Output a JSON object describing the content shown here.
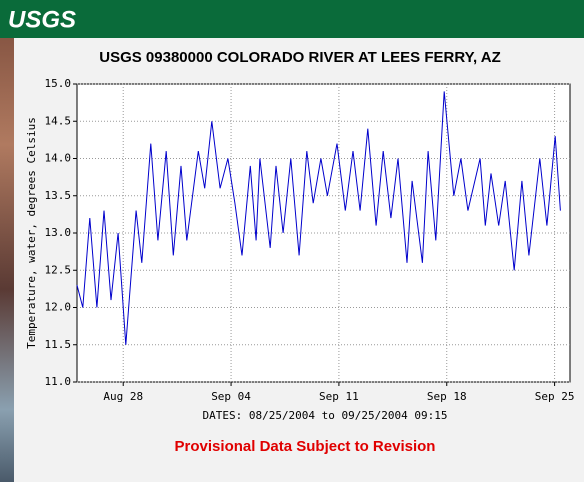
{
  "header": {
    "logo": "USGS"
  },
  "chart_data": {
    "type": "line",
    "title": "USGS 09380000 COLORADO RIVER AT LEES FERRY, AZ",
    "ylabel": "Temperature, water, degrees Celsius",
    "xlabel": "DATES: 08/25/2004 to 09/25/2004 09:15",
    "annotation": "Provisional Data Subject to Revision",
    "grid": true,
    "xlim": [
      "2004-08-25T00:00",
      "2004-09-26T00:00"
    ],
    "xticks": [
      {
        "value": "2004-08-28T00:00",
        "label": "Aug 28"
      },
      {
        "value": "2004-09-04T00:00",
        "label": "Sep 04"
      },
      {
        "value": "2004-09-11T00:00",
        "label": "Sep 11"
      },
      {
        "value": "2004-09-18T00:00",
        "label": "Sep 18"
      },
      {
        "value": "2004-09-25T00:00",
        "label": "Sep 25"
      }
    ],
    "ylim": [
      11.0,
      15.0
    ],
    "yticks": [
      {
        "value": 11,
        "label": "11.0"
      },
      11.5,
      {
        "value": 12,
        "label": "12.0"
      },
      12.5,
      {
        "value": 13,
        "label": "13.0"
      },
      13.5,
      {
        "value": 14,
        "label": "14.0"
      },
      14.5,
      {
        "value": 15,
        "label": "15.0"
      }
    ],
    "series": [
      {
        "color": "#0000cc",
        "x": [
          "2004-08-25T00:00",
          "2004-08-25T09:00",
          "2004-08-25T20:00",
          "2004-08-26T07:00",
          "2004-08-26T18:00",
          "2004-08-27T05:00",
          "2004-08-27T16:00",
          "2004-08-28T04:00",
          "2004-08-28T20:00",
          "2004-08-29T05:00",
          "2004-08-29T19:00",
          "2004-08-30T06:00",
          "2004-08-30T19:00",
          "2004-08-31T06:00",
          "2004-08-31T18:00",
          "2004-09-01T03:00",
          "2004-09-01T21:00",
          "2004-09-02T07:00",
          "2004-09-02T18:00",
          "2004-09-03T07:00",
          "2004-09-03T19:00",
          "2004-09-04T06:00",
          "2004-09-04T17:00",
          "2004-09-05T06:00",
          "2004-09-05T15:00",
          "2004-09-05T21:00",
          "2004-09-06T13:00",
          "2004-09-06T22:00",
          "2004-09-07T09:00",
          "2004-09-07T21:00",
          "2004-09-08T10:00",
          "2004-09-08T22:00",
          "2004-09-09T08:00",
          "2004-09-09T20:00",
          "2004-09-10T06:00",
          "2004-09-10T21:00",
          "2004-09-11T10:00",
          "2004-09-11T22:00",
          "2004-09-12T09:00",
          "2004-09-12T21:00",
          "2004-09-13T10:00",
          "2004-09-13T21:00",
          "2004-09-14T09:00",
          "2004-09-14T20:00",
          "2004-09-15T10:00",
          "2004-09-15T18:00",
          "2004-09-16T10:00",
          "2004-09-16T19:00",
          "2004-09-17T07:00",
          "2004-09-17T20:00",
          "2004-09-18T11:00",
          "2004-09-18T22:00",
          "2004-09-19T09:00",
          "2004-09-20T04:00",
          "2004-09-20T12:00",
          "2004-09-20T21:00",
          "2004-09-21T09:00",
          "2004-09-21T19:00",
          "2004-09-22T09:00",
          "2004-09-22T21:00",
          "2004-09-23T08:00",
          "2004-09-24T01:00",
          "2004-09-24T12:00",
          "2004-09-25T01:00",
          "2004-09-25T09:00"
        ],
        "values": [
          12.3,
          12.0,
          13.2,
          12.0,
          13.3,
          12.1,
          13.0,
          11.5,
          13.3,
          12.6,
          14.2,
          12.9,
          14.1,
          12.7,
          13.9,
          12.9,
          14.1,
          13.6,
          14.5,
          13.6,
          14.0,
          13.4,
          12.7,
          13.9,
          12.9,
          14.0,
          12.8,
          13.9,
          13.0,
          14.0,
          12.7,
          14.1,
          13.4,
          14.0,
          13.5,
          14.2,
          13.3,
          14.1,
          13.3,
          14.4,
          13.1,
          14.1,
          13.2,
          14.0,
          12.6,
          13.7,
          12.6,
          14.1,
          12.9,
          14.9,
          13.5,
          14.0,
          13.3,
          14.0,
          13.1,
          13.8,
          13.1,
          13.7,
          12.5,
          13.7,
          12.7,
          14.0,
          13.1,
          14.3,
          13.3
        ]
      }
    ]
  }
}
